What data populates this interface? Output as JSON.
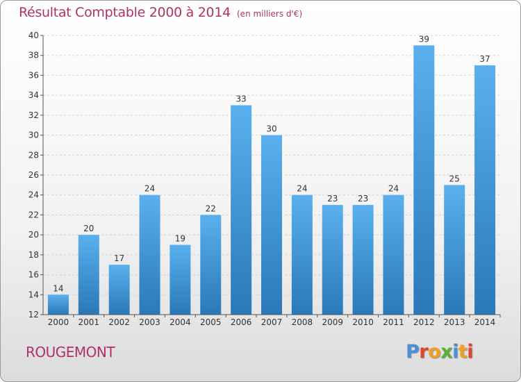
{
  "header": {
    "title": "Résultat Comptable 2000 à 2014",
    "unit": "(en milliers d'€)"
  },
  "footer": {
    "commune": "ROUGEMONT",
    "logo": [
      "P",
      "r",
      "o",
      "x",
      "i",
      "t",
      "i"
    ]
  },
  "colors": {
    "title": "#b0306a",
    "bar_top": "#5ab0ee",
    "bar_bottom": "#2a78b8",
    "logo_letters": [
      "#4a90d9",
      "#e0452b",
      "#f0a020",
      "#5bb030",
      "#4a90d9",
      "#f0a020",
      "#e0452b"
    ]
  },
  "chart_data": {
    "type": "bar",
    "title": "Résultat Comptable 2000 à 2014",
    "subtitle": "(en milliers d'€)",
    "categories": [
      "2000",
      "2001",
      "2002",
      "2003",
      "2004",
      "2005",
      "2006",
      "2007",
      "2008",
      "2009",
      "2010",
      "2011",
      "2012",
      "2013",
      "2014"
    ],
    "values": [
      14,
      20,
      17,
      24,
      19,
      22,
      33,
      30,
      24,
      23,
      23,
      24,
      39,
      25,
      37
    ],
    "ylim": [
      12,
      40
    ],
    "yticks": [
      12,
      14,
      16,
      18,
      20,
      22,
      24,
      26,
      28,
      30,
      32,
      34,
      36,
      38,
      40
    ],
    "xlabel": "",
    "ylabel": "",
    "grid": true
  }
}
